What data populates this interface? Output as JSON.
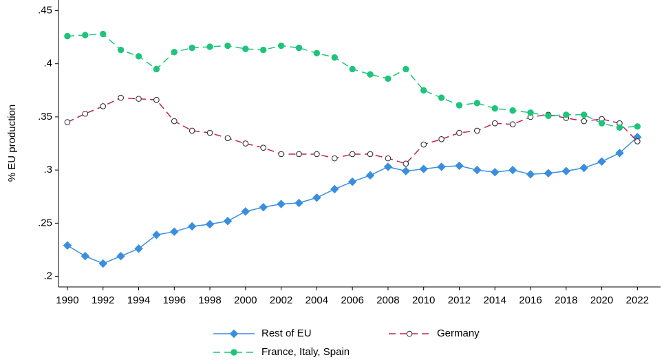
{
  "chart_data": {
    "type": "line",
    "ylabel": "% EU production",
    "x": [
      1990,
      1991,
      1992,
      1993,
      1994,
      1995,
      1996,
      1997,
      1998,
      1999,
      2000,
      2001,
      2002,
      2003,
      2004,
      2005,
      2006,
      2007,
      2008,
      2009,
      2010,
      2011,
      2012,
      2013,
      2014,
      2015,
      2016,
      2017,
      2018,
      2019,
      2020,
      2021,
      2022
    ],
    "xlim": [
      1989.5,
      2023.3
    ],
    "xticks": [
      1990,
      1992,
      1994,
      1996,
      1998,
      2000,
      2002,
      2004,
      2006,
      2008,
      2010,
      2012,
      2014,
      2016,
      2018,
      2020,
      2022
    ],
    "ylim": [
      0.19,
      0.46
    ],
    "yticks": [
      {
        "value": 0.2,
        "label": ".2"
      },
      {
        "value": 0.25,
        "label": ".25"
      },
      {
        "value": 0.3,
        "label": ".3"
      },
      {
        "value": 0.35,
        "label": ".35"
      },
      {
        "value": 0.4,
        "label": ".4"
      },
      {
        "value": 0.45,
        "label": ".45"
      }
    ],
    "legend": "bottom",
    "series": [
      {
        "name": "Rest of EU",
        "color": "#3a8ee0",
        "style": "solid",
        "marker": "diamond",
        "values": [
          0.229,
          0.219,
          0.212,
          0.219,
          0.226,
          0.239,
          0.242,
          0.247,
          0.249,
          0.252,
          0.261,
          0.265,
          0.268,
          0.269,
          0.274,
          0.282,
          0.289,
          0.295,
          0.303,
          0.299,
          0.301,
          0.303,
          0.304,
          0.3,
          0.298,
          0.3,
          0.296,
          0.297,
          0.299,
          0.302,
          0.308,
          0.316,
          0.331
        ]
      },
      {
        "name": "Germany",
        "color": "#c01e5a",
        "style": "dash",
        "marker": "circle-hollow",
        "values": [
          0.345,
          0.353,
          0.36,
          0.368,
          0.367,
          0.366,
          0.346,
          0.337,
          0.335,
          0.33,
          0.325,
          0.321,
          0.315,
          0.315,
          0.315,
          0.311,
          0.315,
          0.315,
          0.311,
          0.306,
          0.324,
          0.329,
          0.335,
          0.337,
          0.344,
          0.343,
          0.35,
          0.352,
          0.349,
          0.346,
          0.348,
          0.344,
          0.327
        ]
      },
      {
        "name": "France, Italy, Spain",
        "color": "#1fc47c",
        "style": "dash",
        "marker": "circle",
        "values": [
          0.426,
          0.427,
          0.428,
          0.413,
          0.407,
          0.395,
          0.411,
          0.415,
          0.416,
          0.417,
          0.414,
          0.413,
          0.417,
          0.415,
          0.41,
          0.406,
          0.395,
          0.39,
          0.386,
          0.395,
          0.375,
          0.368,
          0.361,
          0.363,
          0.358,
          0.356,
          0.354,
          0.351,
          0.352,
          0.352,
          0.344,
          0.34,
          0.341
        ]
      }
    ]
  }
}
